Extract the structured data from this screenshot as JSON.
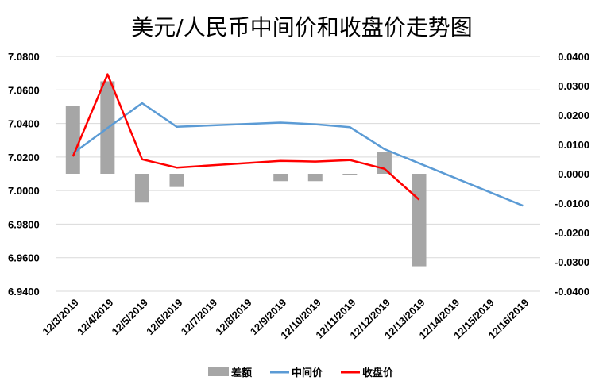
{
  "chart_data": {
    "type": "bar",
    "title": "美元/人民币中间价和收盘价走势图",
    "categories": [
      "12/3/2019",
      "12/4/2019",
      "12/5/2019",
      "12/6/2019",
      "12/7/2019",
      "12/8/2019",
      "12/9/2019",
      "12/10/2019",
      "12/11/2019",
      "12/12/2019",
      "12/13/2019",
      "12/14/2019",
      "12/15/2019",
      "12/16/2019"
    ],
    "left_axis": {
      "ylim": [
        6.94,
        7.08
      ],
      "ticks": [
        "6.9400",
        "6.9600",
        "6.9800",
        "7.0000",
        "7.0200",
        "7.0400",
        "7.0600",
        "7.0800"
      ]
    },
    "right_axis": {
      "ylim": [
        -0.04,
        0.04
      ],
      "ticks": [
        "-0.0400",
        "-0.0300",
        "-0.0200",
        "-0.0100",
        "0.0000",
        "0.0100",
        "0.0200",
        "0.0300",
        "0.0400"
      ]
    },
    "series": [
      {
        "name": "差额",
        "type": "bar",
        "axis": "right",
        "color": "#a6a6a6",
        "points": [
          [
            0,
            0.0232
          ],
          [
            1,
            0.0315
          ],
          [
            2,
            -0.0098
          ],
          [
            3,
            -0.0045
          ],
          [
            6,
            -0.0025
          ],
          [
            7,
            -0.0025
          ],
          [
            8,
            -0.0004
          ],
          [
            9,
            0.0075
          ],
          [
            10,
            -0.0315
          ]
        ]
      },
      {
        "name": "中间价",
        "type": "line",
        "axis": "left",
        "color": "#5b9bd5",
        "points": [
          [
            0,
            7.0221
          ],
          [
            1,
            7.0373
          ],
          [
            2,
            7.0521
          ],
          [
            3,
            7.038
          ],
          [
            6,
            7.0405
          ],
          [
            7,
            7.0395
          ],
          [
            8,
            7.0378
          ],
          [
            9,
            7.0247
          ],
          [
            13,
            6.991
          ]
        ]
      },
      {
        "name": "收盘价",
        "type": "line",
        "axis": "left",
        "color": "#ff0000",
        "points": [
          [
            0,
            7.0203
          ],
          [
            1,
            7.0693
          ],
          [
            2,
            7.0186
          ],
          [
            3,
            7.0137
          ],
          [
            6,
            7.0177
          ],
          [
            7,
            7.0173
          ],
          [
            8,
            7.0182
          ],
          [
            9,
            7.013
          ],
          [
            10,
            6.9946
          ]
        ]
      }
    ],
    "legend": [
      "差额",
      "中间价",
      "收盘价"
    ],
    "legend_position": "bottom",
    "grid": true,
    "xlabel": "",
    "ylabel": ""
  }
}
